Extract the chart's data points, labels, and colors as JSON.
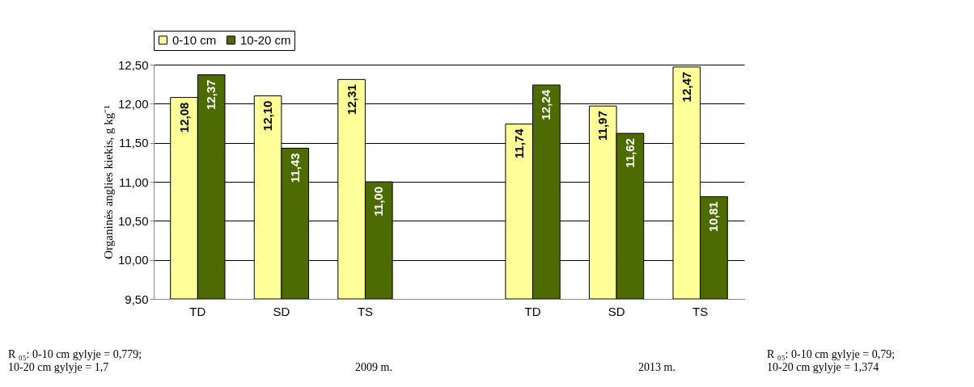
{
  "chart_data": {
    "type": "bar",
    "ylabel": "Organinės anglies kiekis, g kg⁻¹",
    "categories": [
      "TD",
      "SD",
      "TS",
      null,
      "TD",
      "SD",
      "TS"
    ],
    "series": [
      {
        "name": "0-10 cm",
        "color": "#ffff99",
        "values": [
          12.08,
          12.1,
          12.31,
          null,
          11.74,
          11.97,
          12.47
        ],
        "value_labels": [
          "12,08",
          "12,10",
          "12,31",
          null,
          "11,74",
          "11,97",
          "12,47"
        ]
      },
      {
        "name": "10-20 cm",
        "color": "#4d6b00",
        "values": [
          12.37,
          11.43,
          11.0,
          null,
          12.24,
          11.62,
          10.81
        ],
        "value_labels": [
          "12,37",
          "11,43",
          "11,00",
          null,
          "12,24",
          "11,62",
          "10,81"
        ]
      }
    ],
    "ylim": [
      9.5,
      12.5
    ],
    "yticks": [
      {
        "value": 9.5,
        "label": "9,50"
      },
      {
        "value": 10.0,
        "label": "10,00"
      },
      {
        "value": 10.5,
        "label": "10,50"
      },
      {
        "value": 11.0,
        "label": "11,00"
      },
      {
        "value": 11.5,
        "label": "11,50"
      },
      {
        "value": 12.0,
        "label": "12,00"
      },
      {
        "value": 12.5,
        "label": "12,50"
      }
    ],
    "grid": "y",
    "legend": "top",
    "annotations": [
      "2009 m.",
      "2013 m.",
      "R ₀₅: 0-10 cm gylyje = 0,779;\n10-20 cm gylyje = 1,7",
      "R ₀₅: 0-10 cm gylyje = 0,79;\n10-20 cm gylyje = 1,374"
    ]
  }
}
